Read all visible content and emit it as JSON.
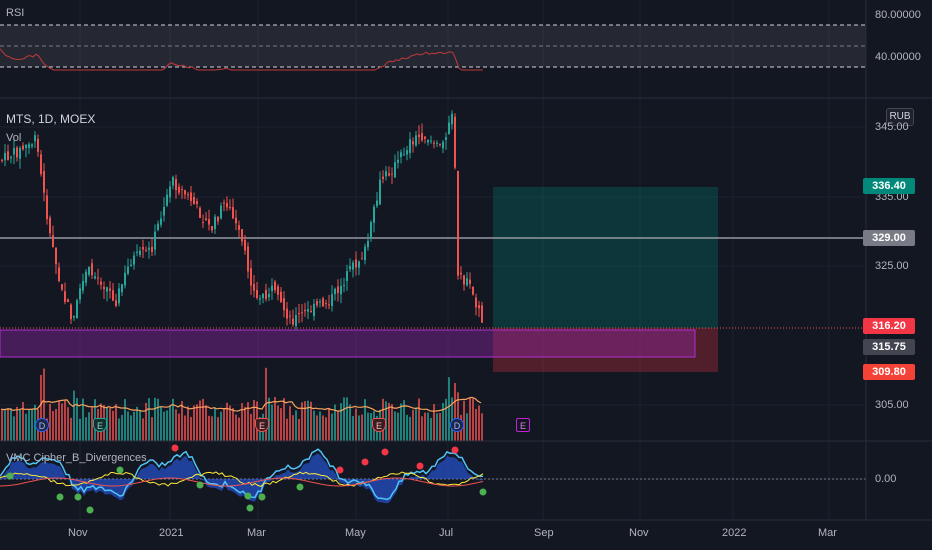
{
  "colors": {
    "background": "#131722",
    "up": "#26a69a",
    "down": "#ef5350",
    "rsi_line": "#c2393b",
    "tag_teal": "#00897b",
    "tag_gray": "#787b86",
    "tag_red": "#f23645",
    "tag_red_light": "#f44336",
    "zone_purple": "#9c27b0"
  },
  "rsi": {
    "label": "RSI",
    "levels": [
      "80.00000",
      "40.00000"
    ]
  },
  "symbol": {
    "title": "MTS, 1D, MOEX",
    "volume_label": "Vol",
    "currency": "RUB"
  },
  "price_axis": {
    "ticks": [
      "345.00",
      "335.00",
      "325.00",
      "305.00"
    ],
    "tags": {
      "target": "336.40",
      "level": "329.00",
      "last": "316.20",
      "support": "315.75",
      "stop": "309.80"
    }
  },
  "oscillator": {
    "label": "VMC Cipher_B_Divergences",
    "zero_label": "0.00"
  },
  "time_axis": [
    "Nov",
    "2021",
    "Mar",
    "May",
    "Jul",
    "Sep",
    "Nov",
    "2022",
    "Mar"
  ],
  "events": [
    {
      "name": "dividend-icon",
      "text": "D",
      "kind": "circle"
    },
    {
      "name": "split-icon",
      "text": "E",
      "kind": "shield"
    },
    {
      "name": "earnings-icon",
      "text": "E",
      "kind": "earn"
    },
    {
      "name": "earnings-icon",
      "text": "E",
      "kind": "earn"
    },
    {
      "name": "dividend-icon",
      "text": "D",
      "kind": "circle"
    },
    {
      "name": "future-earnings-icon",
      "text": "E",
      "kind": "future"
    }
  ]
}
